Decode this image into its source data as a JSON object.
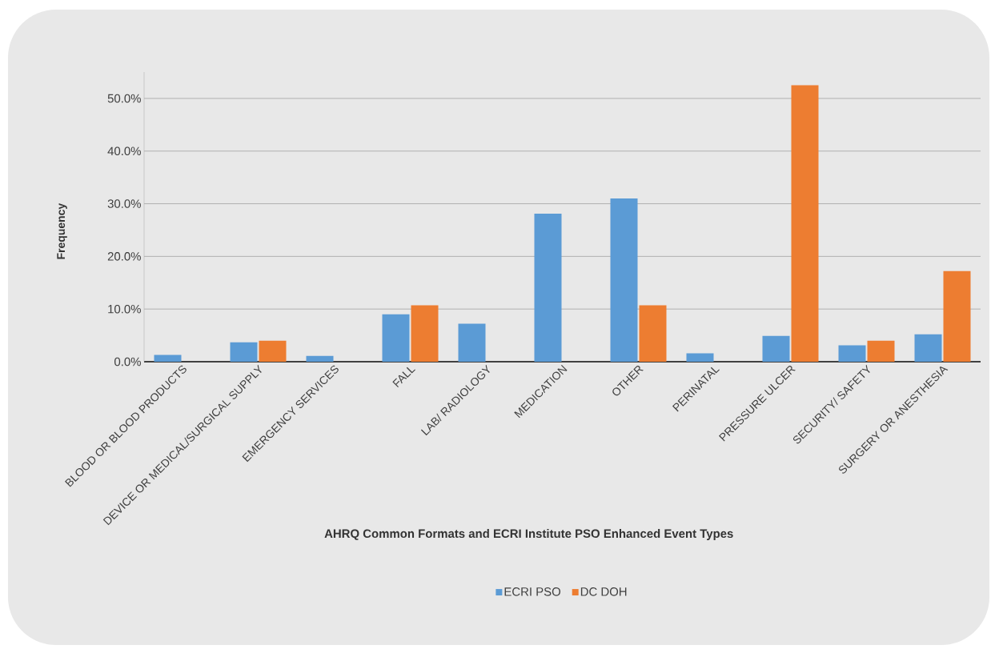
{
  "chart_data": {
    "type": "bar",
    "xlabel": "AHRQ Common Formats and ECRI Institute PSO Enhanced Event Types",
    "ylabel": "Frequency",
    "categories": [
      "BLOOD OR BLOOD PRODUCTS",
      "DEVICE OR MEDICAL/SURGICAL SUPPLY",
      "EMERGENCY SERVICES",
      "FALL",
      "LAB/ RADIOLOGY",
      "MEDICATION",
      "OTHER",
      "PERINATAL",
      "PRESSURE ULCER",
      "SECURITY/ SAFETY",
      "SURGERY OR ANESTHESIA"
    ],
    "series": [
      {
        "name": "ECRI PSO",
        "color": "#5b9bd5",
        "values": [
          1.3,
          3.7,
          1.1,
          9.0,
          7.2,
          28.1,
          31.0,
          1.6,
          4.9,
          3.1,
          5.2
        ]
      },
      {
        "name": "DC DOH",
        "color": "#ed7d31",
        "values": [
          null,
          4.0,
          null,
          10.7,
          null,
          null,
          10.7,
          null,
          52.5,
          4.0,
          17.2
        ]
      }
    ],
    "ylim": [
      0,
      55
    ],
    "yticks": [
      {
        "value": 0,
        "label": "0.0%"
      },
      {
        "value": 10,
        "label": "10.0%"
      },
      {
        "value": 20,
        "label": "20.0%"
      },
      {
        "value": 30,
        "label": "30.0%"
      },
      {
        "value": 40,
        "label": "40.0%"
      },
      {
        "value": 50,
        "label": "50.0%"
      }
    ],
    "grid": "y",
    "legend": "bottom"
  }
}
